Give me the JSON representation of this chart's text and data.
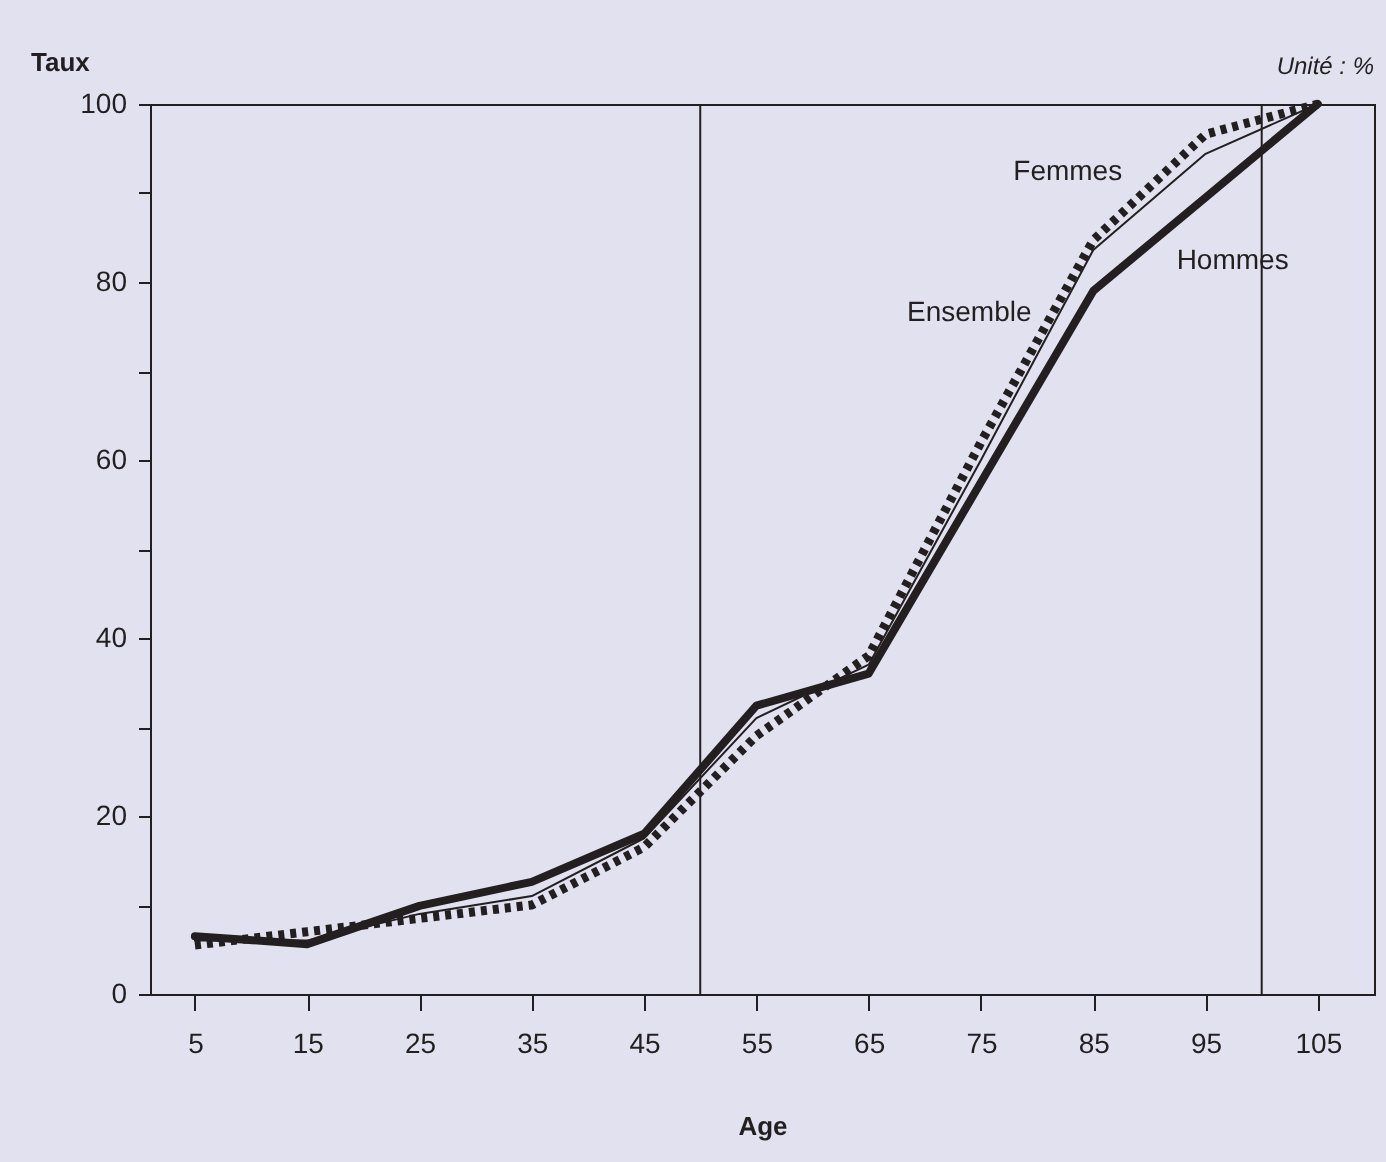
{
  "chart_data": {
    "type": "line",
    "xlabel": "Age",
    "ylabel": "Taux",
    "annotations": [
      "Unité : %"
    ],
    "x": [
      5,
      15,
      25,
      35,
      45,
      55,
      65,
      75,
      85,
      95,
      105
    ],
    "xlim": [
      1,
      110
    ],
    "xticks": [
      5,
      15,
      25,
      35,
      45,
      55,
      65,
      75,
      85,
      95,
      105
    ],
    "ylim": [
      0,
      100
    ],
    "yticks": [
      0,
      {
        "value": 10,
        "label": null
      },
      20,
      {
        "value": 30,
        "label": null
      },
      40,
      {
        "value": 50,
        "label": null
      },
      60,
      {
        "value": 70,
        "label": null
      },
      80,
      {
        "value": 90,
        "label": null
      },
      100
    ],
    "grid": false,
    "legend": false,
    "marker": "none",
    "ref_lines": [
      {
        "axis": "x",
        "value": 50,
        "color": "#231f20"
      },
      {
        "axis": "x",
        "value": 100,
        "color": "#231f20"
      }
    ],
    "series": [
      {
        "name": "Femmes",
        "color": "#231f20",
        "line_style": "dotted",
        "values": [
          5.5,
          7,
          8.5,
          10,
          16.5,
          29,
          38,
          62,
          84.7,
          96.6,
          100
        ]
      },
      {
        "name": "Ensemble",
        "color": "#231f20",
        "line_style": "solid",
        "values": [
          6,
          6,
          9,
          11,
          17.5,
          31,
          37,
          60,
          83.6,
          94.4,
          100
        ]
      },
      {
        "name": "Hommes",
        "color": "#231f20",
        "line_style": "solid",
        "values": [
          6.5,
          5.6,
          9.9,
          12.6,
          18,
          32.4,
          36,
          57.5,
          79,
          89.5,
          100
        ]
      }
    ]
  }
}
